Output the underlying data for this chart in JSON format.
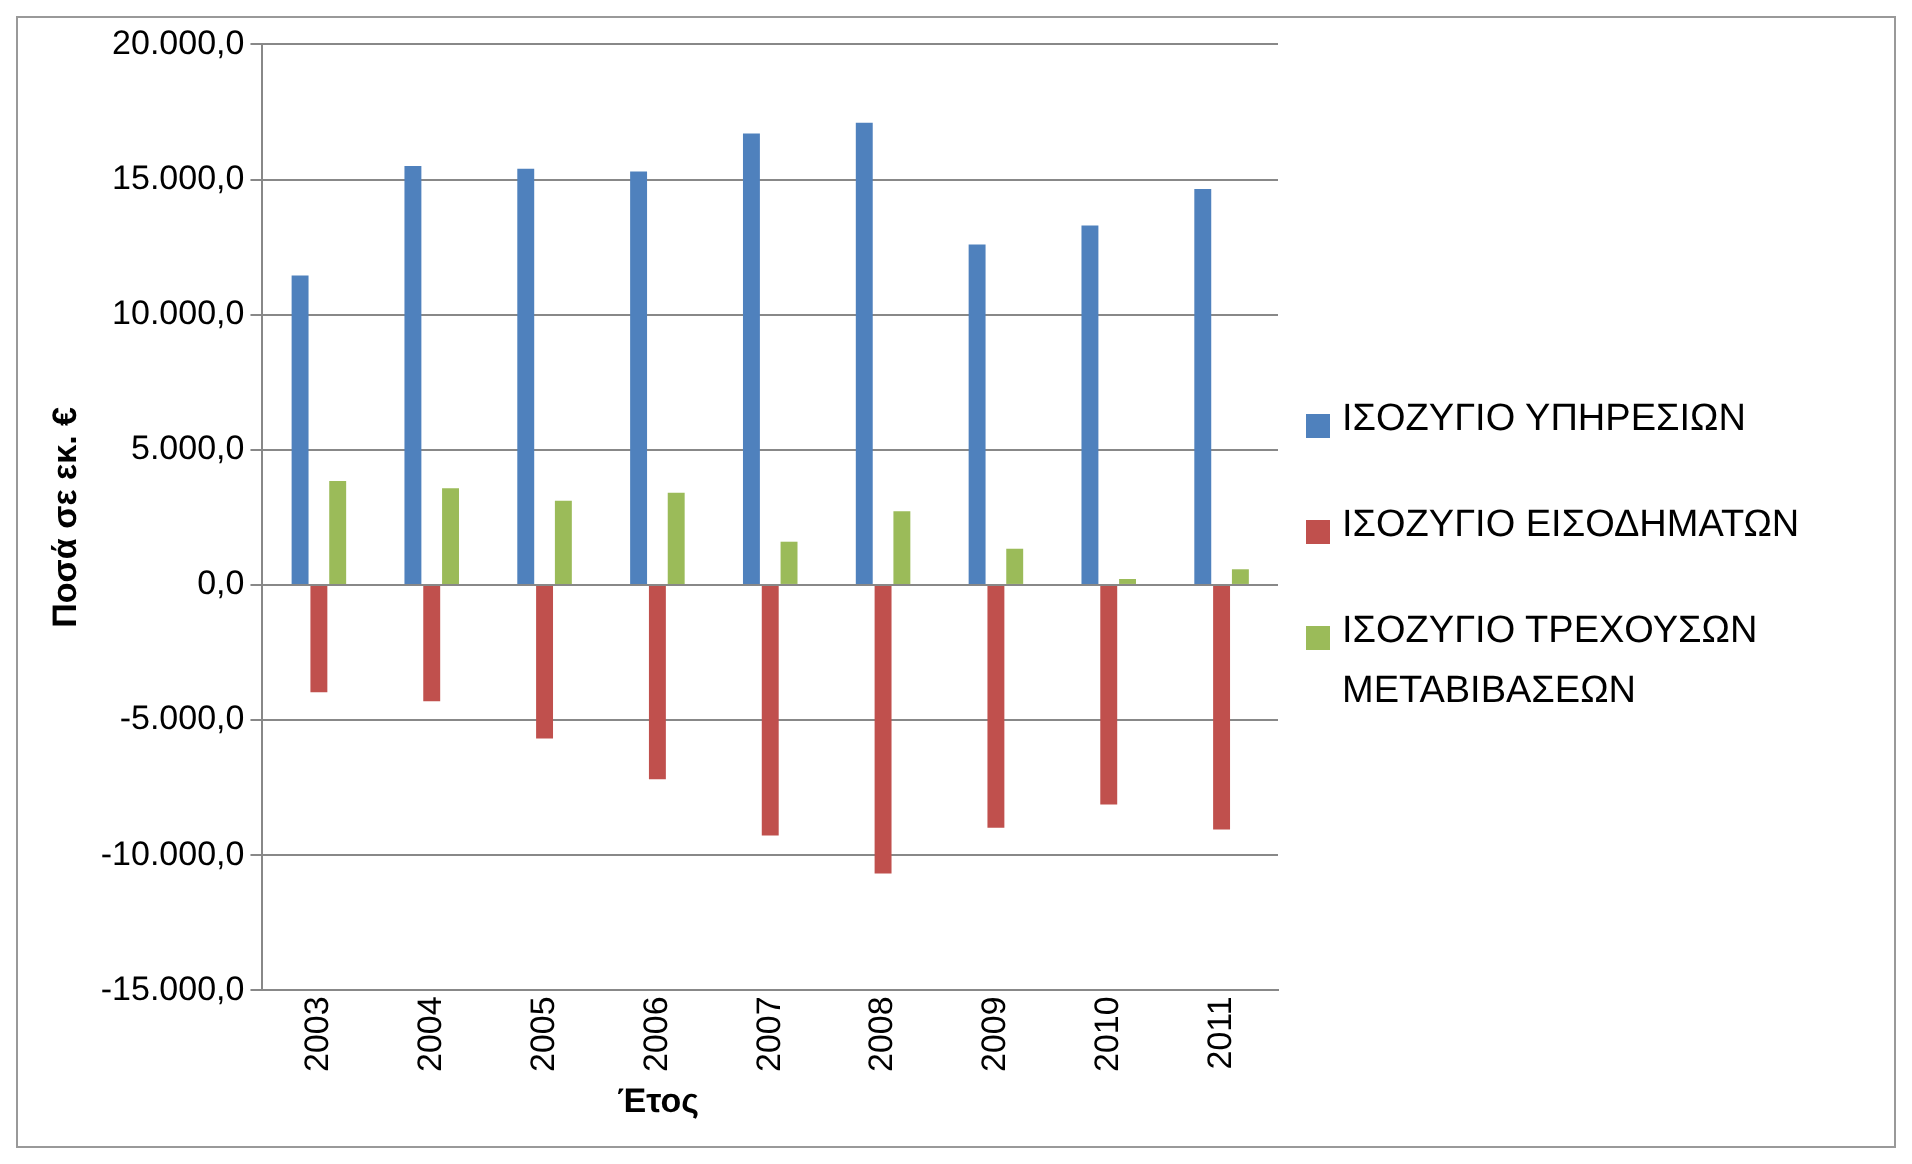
{
  "chart_data": {
    "type": "bar",
    "xlabel": "Έτος",
    "ylabel": "Ποσά σε εκ. €",
    "categories": [
      "2003",
      "2004",
      "2005",
      "2006",
      "2007",
      "2008",
      "2009",
      "2010",
      "2011"
    ],
    "series": [
      {
        "name": "ΙΣΟΖΥΓΙΟ ΥΠΗΡΕΣΙΩΝ",
        "color": "#4f81bd",
        "values": [
          11450,
          15500,
          15400,
          15300,
          16700,
          17100,
          12600,
          13300,
          14650
        ]
      },
      {
        "name": "ΙΣΟΖΥΓΙΟ ΕΙΣΟΔΗΜΑΤΩΝ",
        "color": "#c0504d",
        "values": [
          -3970,
          -4300,
          -5680,
          -7190,
          -9270,
          -10680,
          -8980,
          -8120,
          -9050
        ]
      },
      {
        "name": "ΙΣΟΖΥΓΙΟ ΤΡΕΧΟΥΣΩΝ ΜΕΤΑΒΙΒΑΣΕΩΝ",
        "color": "#9bbb59",
        "values": [
          3850,
          3580,
          3120,
          3410,
          1600,
          2730,
          1340,
          220,
          580
        ]
      }
    ],
    "ylim": [
      -15000,
      20000
    ],
    "yticks": [
      {
        "value": -15000,
        "label": "-15.000,0"
      },
      {
        "value": -10000,
        "label": "-10.000,0"
      },
      {
        "value": -5000,
        "label": "-5.000,0"
      },
      {
        "value": 0,
        "label": "0,0"
      },
      {
        "value": 5000,
        "label": "5.000,0"
      },
      {
        "value": 10000,
        "label": "10.000,0"
      },
      {
        "value": 15000,
        "label": "15.000,0"
      },
      {
        "value": 20000,
        "label": "20.000,0"
      }
    ],
    "grid": "y",
    "legend": "right"
  }
}
